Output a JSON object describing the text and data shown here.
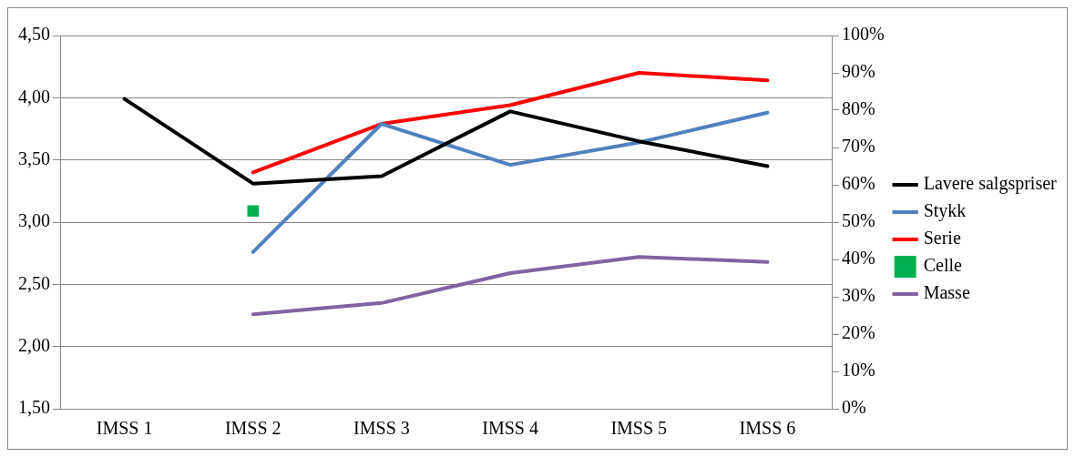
{
  "chart_data": {
    "type": "line",
    "categories": [
      "IMSS 1",
      "IMSS 2",
      "IMSS 3",
      "IMSS 4",
      "IMSS 5",
      "IMSS 6"
    ],
    "series": [
      {
        "name": "Lavere salgspriser",
        "color": "#000000",
        "values": [
          3.99,
          3.31,
          3.37,
          3.89,
          3.65,
          3.45
        ],
        "marker": "none"
      },
      {
        "name": "Stykk",
        "color": "#4f81bd",
        "values": [
          null,
          2.76,
          3.79,
          3.46,
          3.64,
          3.88
        ],
        "marker": "none"
      },
      {
        "name": "Serie",
        "color": "#ff0000",
        "values": [
          null,
          3.4,
          3.79,
          3.94,
          4.2,
          4.14
        ],
        "marker": "none"
      },
      {
        "name": "Celle",
        "color": "#00b050",
        "values": [
          null,
          3.09,
          null,
          null,
          null,
          null
        ],
        "marker": "square"
      },
      {
        "name": "Masse",
        "color": "#8064a2",
        "values": [
          null,
          2.26,
          2.35,
          2.59,
          2.72,
          2.68
        ],
        "marker": "none"
      }
    ],
    "ylim": [
      1.5,
      4.5
    ],
    "yticks": [
      {
        "value": 1.5,
        "label": "1,50"
      },
      {
        "value": 2,
        "label": "2,00"
      },
      {
        "value": 2.5,
        "label": "2,50"
      },
      {
        "value": 3,
        "label": "3,00"
      },
      {
        "value": 3.5,
        "label": "3,50"
      },
      {
        "value": 4,
        "label": "4,00"
      },
      {
        "value": 4.5,
        "label": "4,50"
      }
    ],
    "y2lim": [
      0,
      100
    ],
    "y2ticks": [
      {
        "value": 0,
        "label": "0%"
      },
      {
        "value": 10,
        "label": "10%"
      },
      {
        "value": 20,
        "label": "20%"
      },
      {
        "value": 30,
        "label": "30%"
      },
      {
        "value": 40,
        "label": "40%"
      },
      {
        "value": 50,
        "label": "50%"
      },
      {
        "value": 60,
        "label": "60%"
      },
      {
        "value": 70,
        "label": "70%"
      },
      {
        "value": 80,
        "label": "80%"
      },
      {
        "value": 90,
        "label": "90%"
      },
      {
        "value": 100,
        "label": "100%"
      }
    ],
    "grid": "y",
    "legend": "right"
  }
}
